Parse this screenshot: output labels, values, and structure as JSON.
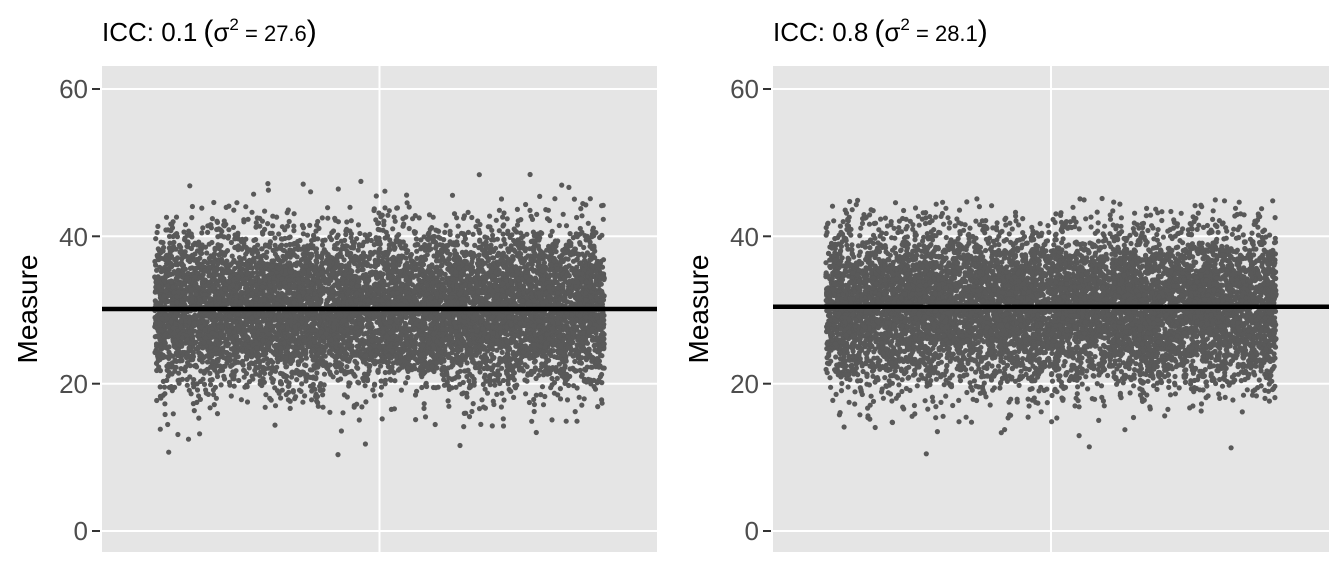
{
  "chart_data": [
    {
      "type": "scatter",
      "title": "ICC: 0.1",
      "sigma_label": "σ",
      "sigma_exponent": "2",
      "sigma_value": " = 27.6",
      "xlabel": "",
      "ylabel": "Measure",
      "ylim": [
        -3,
        63
      ],
      "yticks": [
        0,
        20,
        40,
        60
      ],
      "grid": true,
      "mean_line": 30,
      "point_color": "#595959",
      "point_count": 9000,
      "y_mean": 30,
      "y_sd": 5.25,
      "y_range": [
        8,
        50.3
      ]
    },
    {
      "type": "scatter",
      "title": "ICC: 0.8",
      "sigma_label": "σ",
      "sigma_exponent": "2",
      "sigma_value": " = 28.1",
      "xlabel": "",
      "ylabel": "Measure",
      "ylim": [
        -3,
        63
      ],
      "yticks": [
        0,
        20,
        40,
        60
      ],
      "grid": true,
      "mean_line": 30.3,
      "point_color": "#595959",
      "point_count": 9000,
      "y_mean": 30.3,
      "y_sd": 5.3,
      "y_range": [
        9,
        45
      ]
    }
  ]
}
